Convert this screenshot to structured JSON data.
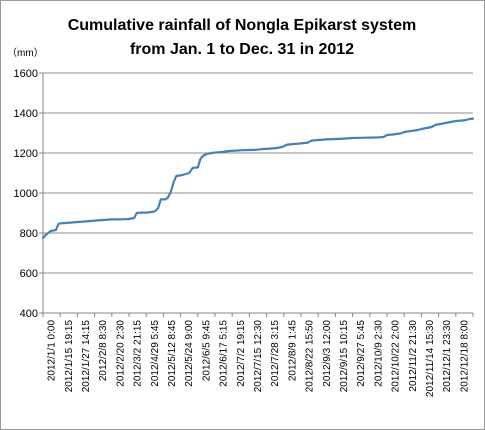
{
  "chart_data": {
    "type": "line",
    "title_lines": [
      "Cumulative rainfall of Nongla Epikarst system",
      "from Jan. 1 to Dec. 31 in 2012"
    ],
    "y_unit": "（mm）",
    "ylim": [
      400,
      1600
    ],
    "y_ticks": [
      400,
      600,
      800,
      1000,
      1200,
      1400,
      1600
    ],
    "grid": true,
    "legend": "none",
    "line_color": "#4a7ebb",
    "categories": [
      "2012/1/1 0:00",
      "2012/1/15 19:15",
      "2012/1/27 14:15",
      "2012/2/8 8:30",
      "2012/2/20 2:30",
      "2012/3/2 21:15",
      "2012/4/29 5:45",
      "2012/5/12 8:45",
      "2012/5/24 9:00",
      "2012/6/5 9:45",
      "2012/6/17 5:15",
      "2012/7/2 19:15",
      "2012/7/15 12:30",
      "2012/7/28 3:15",
      "2012/8/9 1:45",
      "2012/8/22 15:50",
      "2012/9/3 12:00",
      "2012/9/15 10:15",
      "2012/9/27 5:45",
      "2012/10/9 2:30",
      "2012/10/22 2:00",
      "2012/11/2 21:30",
      "2012/11/14 15:30",
      "2012/12/1 23:30",
      "2012/12/18 8:00"
    ],
    "series": [
      {
        "points": [
          [
            0,
            775
          ],
          [
            0.15,
            790
          ],
          [
            0.3,
            800
          ],
          [
            0.45,
            810
          ],
          [
            0.6,
            812
          ],
          [
            0.75,
            815
          ],
          [
            0.9,
            845
          ],
          [
            1.0,
            848
          ],
          [
            1.3,
            850
          ],
          [
            1.6,
            852
          ],
          [
            2.0,
            855
          ],
          [
            2.5,
            858
          ],
          [
            3.0,
            862
          ],
          [
            3.5,
            865
          ],
          [
            4.0,
            868
          ],
          [
            4.5,
            868
          ],
          [
            5.0,
            870
          ],
          [
            5.3,
            875
          ],
          [
            5.45,
            900
          ],
          [
            5.7,
            902
          ],
          [
            6.0,
            902
          ],
          [
            6.3,
            905
          ],
          [
            6.5,
            908
          ],
          [
            6.7,
            925
          ],
          [
            6.85,
            968
          ],
          [
            7.1,
            968
          ],
          [
            7.25,
            975
          ],
          [
            7.45,
            1010
          ],
          [
            7.6,
            1055
          ],
          [
            7.75,
            1085
          ],
          [
            8.0,
            1088
          ],
          [
            8.3,
            1095
          ],
          [
            8.5,
            1100
          ],
          [
            8.7,
            1125
          ],
          [
            9.0,
            1128
          ],
          [
            9.15,
            1170
          ],
          [
            9.3,
            1185
          ],
          [
            9.5,
            1195
          ],
          [
            9.8,
            1200
          ],
          [
            10.0,
            1202
          ],
          [
            10.4,
            1205
          ],
          [
            10.8,
            1210
          ],
          [
            11.2,
            1212
          ],
          [
            11.6,
            1214
          ],
          [
            12.0,
            1215
          ],
          [
            12.4,
            1216
          ],
          [
            12.8,
            1220
          ],
          [
            13.2,
            1222
          ],
          [
            13.6,
            1225
          ],
          [
            13.9,
            1230
          ],
          [
            14.2,
            1242
          ],
          [
            14.6,
            1245
          ],
          [
            15.0,
            1248
          ],
          [
            15.4,
            1252
          ],
          [
            15.6,
            1262
          ],
          [
            16.0,
            1265
          ],
          [
            16.5,
            1268
          ],
          [
            17.0,
            1270
          ],
          [
            17.5,
            1272
          ],
          [
            18.0,
            1275
          ],
          [
            18.5,
            1276
          ],
          [
            19.0,
            1277
          ],
          [
            19.5,
            1278
          ],
          [
            19.8,
            1280
          ],
          [
            20.0,
            1290
          ],
          [
            20.4,
            1293
          ],
          [
            20.8,
            1298
          ],
          [
            21.0,
            1305
          ],
          [
            21.4,
            1310
          ],
          [
            21.8,
            1315
          ],
          [
            22.0,
            1320
          ],
          [
            22.3,
            1325
          ],
          [
            22.6,
            1330
          ],
          [
            22.8,
            1340
          ],
          [
            23.1,
            1345
          ],
          [
            23.4,
            1350
          ],
          [
            23.7,
            1355
          ],
          [
            24.0,
            1360
          ],
          [
            24.3,
            1362
          ],
          [
            24.6,
            1365
          ],
          [
            24.8,
            1370
          ],
          [
            25.0,
            1372
          ]
        ]
      }
    ]
  }
}
